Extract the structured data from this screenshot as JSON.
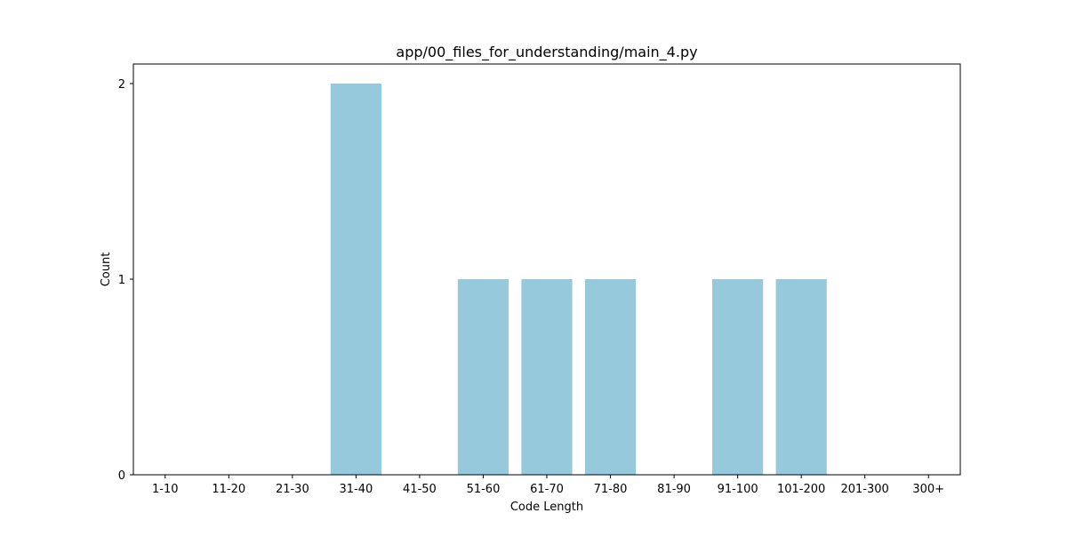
{
  "chart_data": {
    "type": "bar",
    "title": "app/00_files_for_understanding/main_4.py",
    "xlabel": "Code Length",
    "ylabel": "Count",
    "categories": [
      "1-10",
      "11-20",
      "21-30",
      "31-40",
      "41-50",
      "51-60",
      "61-70",
      "71-80",
      "81-90",
      "91-100",
      "101-200",
      "201-300",
      "300+"
    ],
    "values": [
      0,
      0,
      0,
      2,
      0,
      1,
      1,
      1,
      0,
      1,
      1,
      0,
      0
    ],
    "ylim": [
      0,
      2.1
    ],
    "yticks": [
      0,
      1,
      2
    ],
    "bar_color": "#96c9dc",
    "grid": false,
    "legend": "none"
  }
}
